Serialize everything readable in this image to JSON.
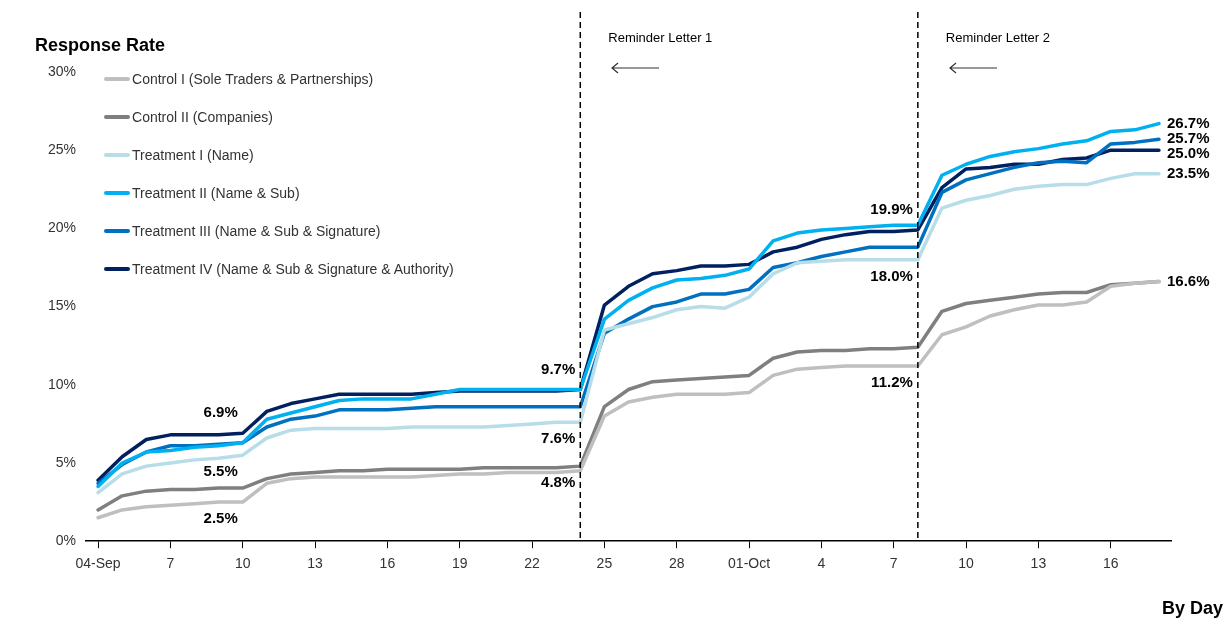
{
  "chart_data": {
    "type": "line",
    "ylabel": "Response Rate",
    "xlabel": "By Day",
    "x": [
      "--09-04",
      "--09-05",
      "--09-06",
      "--09-07",
      "--09-08",
      "--09-09",
      "--09-10",
      "--09-11",
      "--09-12",
      "--09-13",
      "--09-14",
      "--09-15",
      "--09-16",
      "--09-17",
      "--09-18",
      "--09-19",
      "--09-20",
      "--09-21",
      "--09-22",
      "--09-23",
      "--09-24",
      "--09-25",
      "--09-26",
      "--09-27",
      "--09-28",
      "--09-29",
      "--09-30",
      "--10-01",
      "--10-02",
      "--10-03",
      "--10-04",
      "--10-05",
      "--10-06",
      "--10-07",
      "--10-08",
      "--10-09",
      "--10-10",
      "--10-11",
      "--10-12",
      "--10-13",
      "--10-14",
      "--10-15",
      "--10-16",
      "--10-17",
      "--10-18"
    ],
    "xlim": [
      "--09-03T12:00",
      "--10-18T12:00"
    ],
    "xticks": [
      {
        "value": "--09-04",
        "label": "04-Sep"
      },
      {
        "value": "--09-07",
        "label": "7"
      },
      {
        "value": "--09-10",
        "label": "10"
      },
      {
        "value": "--09-13",
        "label": "13"
      },
      {
        "value": "--09-16",
        "label": "16"
      },
      {
        "value": "--09-19",
        "label": "19"
      },
      {
        "value": "--09-22",
        "label": "22"
      },
      {
        "value": "--09-25",
        "label": "25"
      },
      {
        "value": "--09-28",
        "label": "28"
      },
      {
        "value": "--10-01",
        "label": "01-Oct"
      },
      {
        "value": "--10-04",
        "label": "4"
      },
      {
        "value": "--10-07",
        "label": "7"
      },
      {
        "value": "--10-10",
        "label": "10"
      },
      {
        "value": "--10-13",
        "label": "13"
      },
      {
        "value": "--10-16",
        "label": "16"
      }
    ],
    "ylim": [
      0,
      30
    ],
    "yticks": [
      {
        "value": 0,
        "label": "0%"
      },
      {
        "value": 5,
        "label": "5%"
      },
      {
        "value": 10,
        "label": "10%"
      },
      {
        "value": 15,
        "label": "15%"
      },
      {
        "value": 20,
        "label": "20%"
      },
      {
        "value": 25,
        "label": "25%"
      },
      {
        "value": 30,
        "label": "30%"
      }
    ],
    "grid": false,
    "legend": "top left",
    "marker": "none",
    "line_style": "solid",
    "ref_lines": [
      {
        "axis": "x",
        "value": "--09-24",
        "label": "Reminder Letter 1",
        "color": "#000000",
        "line_style": "dashed"
      },
      {
        "axis": "x",
        "value": "--10-08",
        "label": "Reminder Letter 2",
        "color": "#000000",
        "line_style": "dashed"
      }
    ],
    "series": [
      {
        "name": "Control I (Sole Traders & Partnerships)",
        "color": "#bfbfbf",
        "values": [
          1.5,
          2.0,
          2.2,
          2.3,
          2.4,
          2.5,
          2.5,
          3.7,
          4.0,
          4.1,
          4.1,
          4.1,
          4.1,
          4.1,
          4.2,
          4.3,
          4.3,
          4.4,
          4.4,
          4.4,
          4.5,
          8.0,
          8.9,
          9.2,
          9.4,
          9.4,
          9.4,
          9.5,
          10.6,
          11.0,
          11.1,
          11.2,
          11.2,
          11.2,
          11.2,
          13.2,
          13.7,
          14.4,
          14.8,
          15.1,
          15.1,
          15.3,
          16.3,
          16.5,
          16.6
        ],
        "value_labels": [
          null,
          null,
          null,
          null,
          null,
          null,
          "2.5%",
          null,
          null,
          null,
          null,
          null,
          null,
          null,
          null,
          null,
          null,
          null,
          null,
          null,
          null,
          null,
          null,
          null,
          null,
          null,
          null,
          null,
          null,
          null,
          null,
          null,
          null,
          null,
          "11.2%",
          null,
          null,
          null,
          null,
          null,
          null,
          null,
          null,
          null,
          null
        ]
      },
      {
        "name": "Control II (Companies)",
        "color": "#7f7f7f",
        "values": [
          2.0,
          2.9,
          3.2,
          3.3,
          3.3,
          3.4,
          3.4,
          4.0,
          4.3,
          4.4,
          4.5,
          4.5,
          4.6,
          4.6,
          4.6,
          4.6,
          4.7,
          4.7,
          4.7,
          4.7,
          4.8,
          8.6,
          9.7,
          10.2,
          10.3,
          10.4,
          10.5,
          10.6,
          11.7,
          12.1,
          12.2,
          12.2,
          12.3,
          12.3,
          12.4,
          14.7,
          15.2,
          15.4,
          15.6,
          15.8,
          15.9,
          15.9,
          16.4,
          16.5,
          16.6
        ],
        "value_labels": [
          null,
          null,
          null,
          null,
          null,
          null,
          null,
          null,
          null,
          null,
          null,
          null,
          null,
          null,
          null,
          null,
          null,
          null,
          null,
          null,
          "4.8%",
          null,
          null,
          null,
          null,
          null,
          null,
          null,
          null,
          null,
          null,
          null,
          null,
          null,
          null,
          null,
          null,
          null,
          null,
          null,
          null,
          null,
          null,
          null,
          "16.6%"
        ]
      },
      {
        "name": "Treatment I (Name)",
        "color": "#b7dde8",
        "values": [
          3.1,
          4.3,
          4.8,
          5.0,
          5.2,
          5.3,
          5.5,
          6.6,
          7.1,
          7.2,
          7.2,
          7.2,
          7.2,
          7.3,
          7.3,
          7.3,
          7.3,
          7.4,
          7.5,
          7.6,
          7.6,
          13.5,
          13.9,
          14.3,
          14.8,
          15.0,
          14.9,
          15.6,
          17.1,
          17.8,
          17.9,
          18.0,
          18.0,
          18.0,
          18.0,
          21.3,
          21.8,
          22.1,
          22.5,
          22.7,
          22.8,
          22.8,
          23.2,
          23.5,
          23.5
        ],
        "value_labels": [
          null,
          null,
          null,
          null,
          null,
          null,
          "5.5%",
          null,
          null,
          null,
          null,
          null,
          null,
          null,
          null,
          null,
          null,
          null,
          null,
          null,
          "7.6%",
          null,
          null,
          null,
          null,
          null,
          null,
          null,
          null,
          null,
          null,
          null,
          null,
          null,
          "18.0%",
          null,
          null,
          null,
          null,
          null,
          null,
          null,
          null,
          null,
          "23.5%"
        ]
      },
      {
        "name": "Treatment II (Name & Sub)",
        "color": "#00b0f0",
        "values": [
          3.5,
          5.0,
          5.7,
          5.8,
          6.0,
          6.1,
          6.3,
          7.8,
          8.2,
          8.6,
          9.0,
          9.1,
          9.1,
          9.1,
          9.4,
          9.7,
          9.7,
          9.7,
          9.7,
          9.7,
          9.7,
          14.2,
          15.4,
          16.2,
          16.7,
          16.8,
          17.0,
          17.4,
          19.2,
          19.7,
          19.9,
          20.0,
          20.1,
          20.2,
          20.2,
          23.4,
          24.1,
          24.6,
          24.9,
          25.1,
          25.4,
          25.6,
          26.2,
          26.3,
          26.7
        ],
        "value_labels": [
          null,
          null,
          null,
          null,
          null,
          null,
          null,
          null,
          null,
          null,
          null,
          null,
          null,
          null,
          null,
          null,
          null,
          null,
          null,
          null,
          null,
          null,
          null,
          null,
          null,
          null,
          null,
          null,
          null,
          null,
          null,
          null,
          null,
          null,
          null,
          null,
          null,
          null,
          null,
          null,
          null,
          null,
          null,
          null,
          "26.7%"
        ]
      },
      {
        "name": "Treatment III (Name & Sub & Signature)",
        "color": "#0070c0",
        "values": [
          3.7,
          4.9,
          5.7,
          6.1,
          6.1,
          6.2,
          6.3,
          7.3,
          7.8,
          8.0,
          8.4,
          8.4,
          8.4,
          8.5,
          8.6,
          8.6,
          8.6,
          8.6,
          8.6,
          8.6,
          8.6,
          13.3,
          14.2,
          15.0,
          15.3,
          15.8,
          15.8,
          16.1,
          17.5,
          17.8,
          18.2,
          18.5,
          18.8,
          18.8,
          18.8,
          22.3,
          23.1,
          23.5,
          23.9,
          24.2,
          24.3,
          24.2,
          25.4,
          25.5,
          25.7
        ],
        "value_labels": [
          null,
          null,
          null,
          null,
          null,
          null,
          null,
          null,
          null,
          null,
          null,
          null,
          null,
          null,
          null,
          null,
          null,
          null,
          null,
          null,
          null,
          null,
          null,
          null,
          null,
          null,
          null,
          null,
          null,
          null,
          null,
          null,
          null,
          null,
          null,
          null,
          null,
          null,
          null,
          null,
          null,
          null,
          null,
          null,
          "25.7%"
        ]
      },
      {
        "name": "Treatment IV (Name & Sub & Signature & Authority)",
        "color": "#002060",
        "values": [
          3.9,
          5.4,
          6.5,
          6.8,
          6.8,
          6.8,
          6.9,
          8.3,
          8.8,
          9.1,
          9.4,
          9.4,
          9.4,
          9.4,
          9.5,
          9.6,
          9.6,
          9.6,
          9.6,
          9.6,
          9.7,
          15.1,
          16.3,
          17.1,
          17.3,
          17.6,
          17.6,
          17.7,
          18.5,
          18.8,
          19.3,
          19.6,
          19.8,
          19.8,
          19.9,
          22.6,
          23.8,
          23.9,
          24.1,
          24.1,
          24.4,
          24.5,
          25.0,
          25.0,
          25.0
        ],
        "value_labels": [
          null,
          null,
          null,
          null,
          null,
          null,
          "6.9%",
          null,
          null,
          null,
          null,
          null,
          null,
          null,
          null,
          null,
          null,
          null,
          null,
          null,
          "9.7%",
          null,
          null,
          null,
          null,
          null,
          null,
          null,
          null,
          null,
          null,
          null,
          null,
          null,
          "19.9%",
          null,
          null,
          null,
          null,
          null,
          null,
          null,
          null,
          null,
          "25.0%"
        ]
      }
    ]
  }
}
